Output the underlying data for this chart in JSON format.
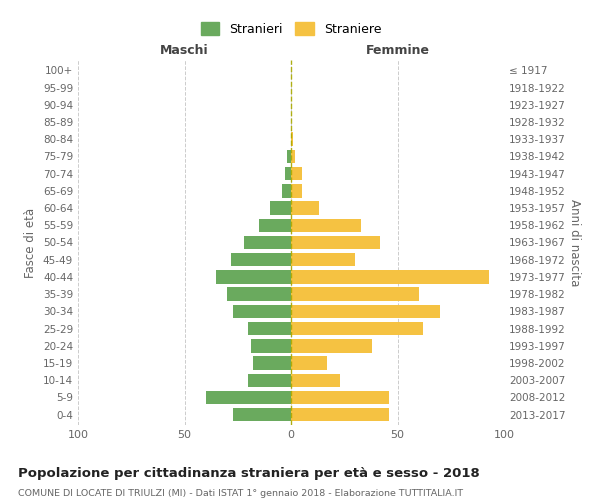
{
  "age_groups": [
    "0-4",
    "5-9",
    "10-14",
    "15-19",
    "20-24",
    "25-29",
    "30-34",
    "35-39",
    "40-44",
    "45-49",
    "50-54",
    "55-59",
    "60-64",
    "65-69",
    "70-74",
    "75-79",
    "80-84",
    "85-89",
    "90-94",
    "95-99",
    "100+"
  ],
  "birth_years": [
    "2013-2017",
    "2008-2012",
    "2003-2007",
    "1998-2002",
    "1993-1997",
    "1988-1992",
    "1983-1987",
    "1978-1982",
    "1973-1977",
    "1968-1972",
    "1963-1967",
    "1958-1962",
    "1953-1957",
    "1948-1952",
    "1943-1947",
    "1938-1942",
    "1933-1937",
    "1928-1932",
    "1923-1927",
    "1918-1922",
    "≤ 1917"
  ],
  "maschi": [
    27,
    40,
    20,
    18,
    19,
    20,
    27,
    30,
    35,
    28,
    22,
    15,
    10,
    4,
    3,
    2,
    0,
    0,
    0,
    0,
    0
  ],
  "femmine": [
    46,
    46,
    23,
    17,
    38,
    62,
    70,
    60,
    93,
    30,
    42,
    33,
    13,
    5,
    5,
    2,
    1,
    0,
    0,
    0,
    0
  ],
  "maschi_color": "#6aaa5e",
  "femmine_color": "#f5c242",
  "background_color": "#ffffff",
  "grid_color": "#cccccc",
  "title": "Popolazione per cittadinanza straniera per età e sesso - 2018",
  "subtitle": "COMUNE DI LOCATE DI TRIULZI (MI) - Dati ISTAT 1° gennaio 2018 - Elaborazione TUTTITALIA.IT",
  "ylabel_left": "Fasce di età",
  "ylabel_right": "Anni di nascita",
  "xlabel_maschi": "Maschi",
  "xlabel_femmine": "Femmine",
  "legend_maschi": "Stranieri",
  "legend_femmine": "Straniere",
  "xlim": 100
}
